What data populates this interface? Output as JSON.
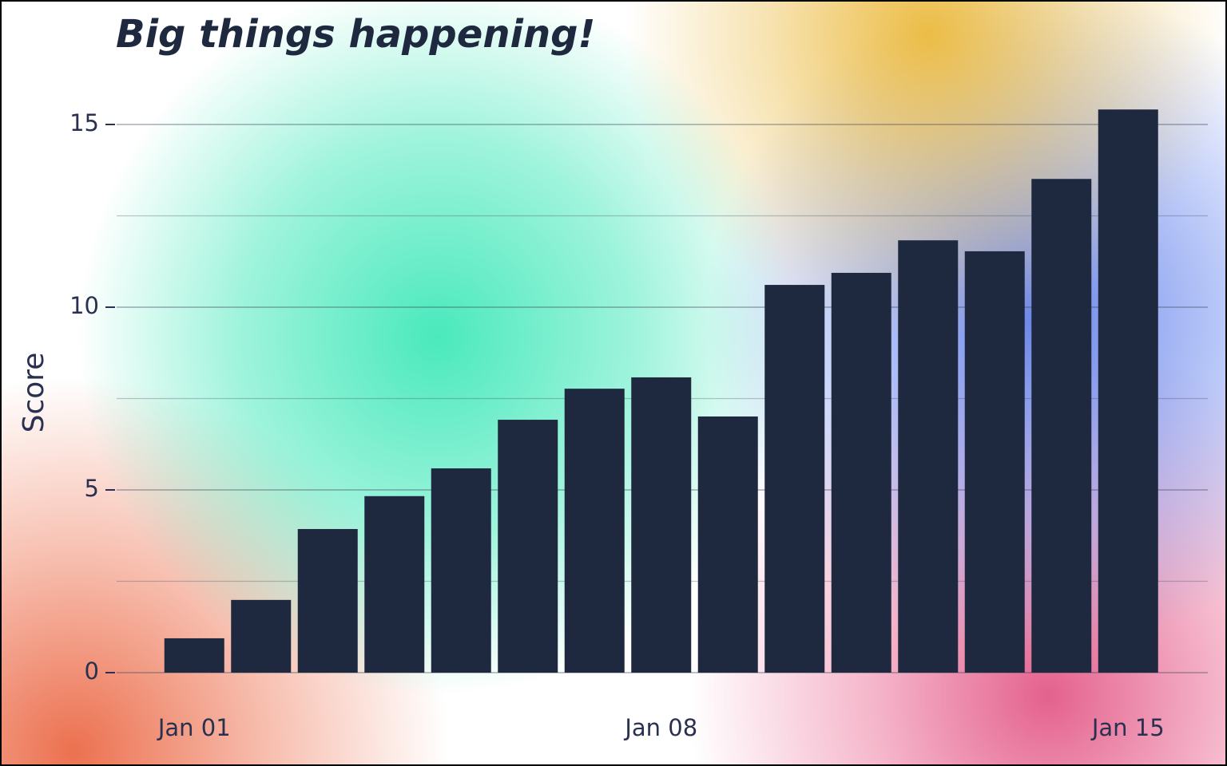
{
  "chart_data": {
    "type": "bar",
    "title": "Big things happening!",
    "y_label": "Score",
    "categories": [
      "Jan 01",
      null,
      null,
      null,
      null,
      null,
      null,
      "Jan 08",
      null,
      null,
      null,
      null,
      null,
      null,
      "Jan 15"
    ],
    "values": [
      0.94,
      1.99,
      3.93,
      4.83,
      5.59,
      6.92,
      7.77,
      8.08,
      7.01,
      10.61,
      10.94,
      11.83,
      11.53,
      13.51,
      15.41
    ],
    "color": "#1e293f",
    "ylim": [
      0,
      16.5
    ],
    "yticks": [
      0,
      5,
      10,
      15
    ],
    "minor_yticks": [
      2.5,
      7.5,
      12.5
    ],
    "grid": true
  }
}
